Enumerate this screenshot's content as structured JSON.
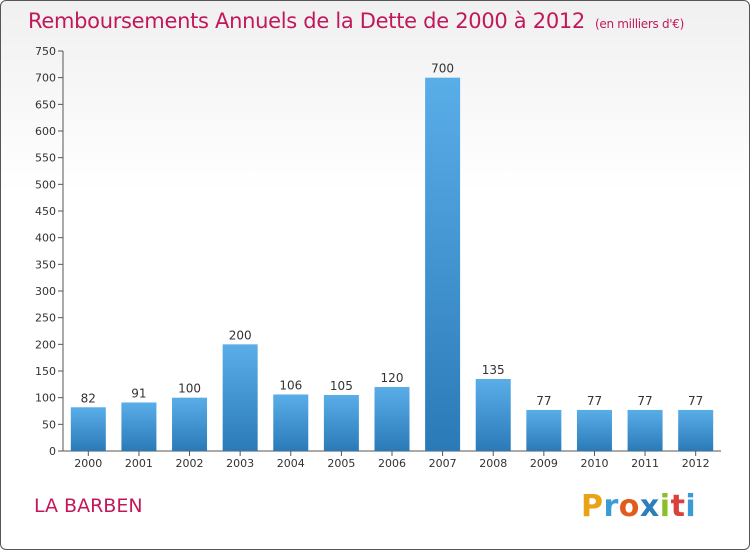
{
  "header": {
    "title": "Remboursements Annuels de la Dette de 2000 à 2012",
    "unit": "(en milliers d'€)"
  },
  "footer": {
    "commune": "LA BARBEN",
    "logo": "Proxiti",
    "logo_colors": [
      "#e8a317",
      "#3a9bd5",
      "#e25a1c",
      "#2c7fb8",
      "#8bbf2a",
      "#d8423a",
      "#3a9bd5"
    ]
  },
  "chart_data": {
    "type": "bar",
    "title": "Remboursements Annuels de la Dette de 2000 à 2012",
    "xlabel": "",
    "ylabel": "",
    "categories": [
      "2000",
      "2001",
      "2002",
      "2003",
      "2004",
      "2005",
      "2006",
      "2007",
      "2008",
      "2009",
      "2010",
      "2011",
      "2012"
    ],
    "values": [
      82,
      91,
      100,
      200,
      106,
      105,
      120,
      700,
      135,
      77,
      77,
      77,
      77
    ],
    "ylim": [
      0,
      750
    ],
    "yticks": [
      0,
      50,
      100,
      150,
      200,
      250,
      300,
      350,
      400,
      450,
      500,
      550,
      600,
      650,
      700,
      750
    ],
    "grid": false,
    "bar_color_top": "#5aaee8",
    "bar_color_bottom": "#2a7ab8",
    "axis_color": "#555555"
  }
}
